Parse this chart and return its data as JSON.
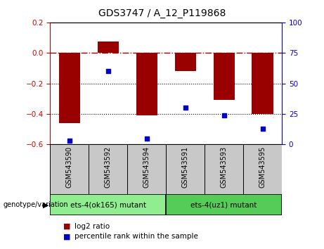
{
  "title": "GDS3747 / A_12_P119868",
  "samples": [
    "GSM543590",
    "GSM543592",
    "GSM543594",
    "GSM543591",
    "GSM543593",
    "GSM543595"
  ],
  "log2_ratios": [
    -0.46,
    0.075,
    -0.41,
    -0.12,
    -0.31,
    -0.4
  ],
  "percentile_ranks": [
    3,
    60,
    5,
    30,
    24,
    13
  ],
  "ylim_left": [
    -0.6,
    0.2
  ],
  "ylim_right": [
    0,
    100
  ],
  "yticks_left": [
    -0.6,
    -0.4,
    -0.2,
    0.0,
    0.2
  ],
  "yticks_right": [
    0,
    25,
    50,
    75,
    100
  ],
  "groups": [
    {
      "label": "ets-4(ok165) mutant",
      "start": 0,
      "end": 3,
      "color": "#90EE90"
    },
    {
      "label": "ets-4(uz1) mutant",
      "start": 3,
      "end": 6,
      "color": "#55CC55"
    }
  ],
  "bar_color": "#990000",
  "dot_color": "#0000CC",
  "dot_lines": [
    -0.2,
    -0.4
  ],
  "bar_width": 0.55,
  "genotype_label": "genotype/variation",
  "legend_log2": "log2 ratio",
  "legend_pct": "percentile rank within the sample",
  "bg_color": "#ffffff",
  "plot_bg": "#ffffff",
  "tick_color_left": "#CC0000",
  "tick_color_right": "#0000CC",
  "label_box_color": "#C8C8C8",
  "group1_color": "#90EE90",
  "group2_color": "#55CC55"
}
